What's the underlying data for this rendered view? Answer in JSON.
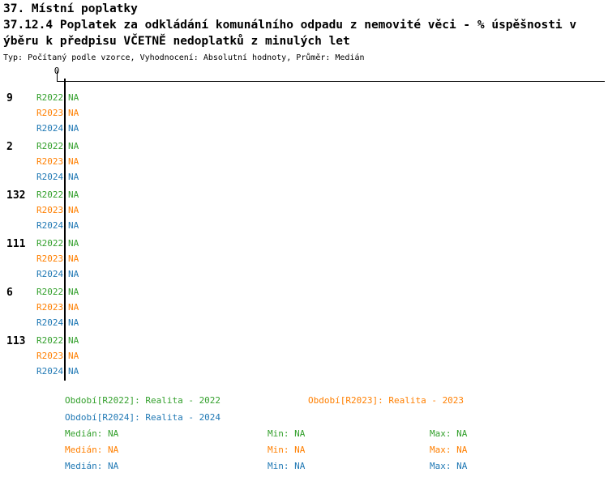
{
  "header": {
    "line1": "37. Místní poplatky",
    "line2": "37.12.4 Poplatek za odkládání komunálního odpadu z nemovité věci - % úspěšnosti v",
    "line3": "ýběru k předpisu VČETNĚ nedoplatků z minulých let",
    "meta": "Typ: Počítaný podle vzorce, Vyhodnocení: Absolutní hodnoty, Průměr: Medián"
  },
  "chart_data": {
    "type": "bar",
    "orientation": "horizontal",
    "title": "37.12.4 Poplatek za odkládání komunálního odpadu z nemovité věci - % úspěšnosti výběru k předpisu VČETNĚ nedoplatků z minulých let",
    "subtitle": "Typ: Počítaný podle vzorce, Vyhodnocení: Absolutní hodnoty, Průměr: Medián",
    "x_axis": {
      "position": "top",
      "ticks": [
        "0"
      ]
    },
    "categories": [
      "9",
      "2",
      "132",
      "111",
      "6",
      "113"
    ],
    "series": [
      {
        "name": "R2022",
        "period_label": "Realita - 2022",
        "color": "#33a02c",
        "values": [
          "NA",
          "NA",
          "NA",
          "NA",
          "NA",
          "NA"
        ]
      },
      {
        "name": "R2023",
        "period_label": "Realita - 2023",
        "color": "#ff7f00",
        "values": [
          "NA",
          "NA",
          "NA",
          "NA",
          "NA",
          "NA"
        ]
      },
      {
        "name": "R2024",
        "period_label": "Realita - 2024",
        "color": "#1f78b4",
        "values": [
          "NA",
          "NA",
          "NA",
          "NA",
          "NA",
          "NA"
        ]
      }
    ],
    "stats": [
      {
        "series": "R2022",
        "median": "NA",
        "min": "NA",
        "max": "NA"
      },
      {
        "series": "R2023",
        "median": "NA",
        "min": "NA",
        "max": "NA"
      },
      {
        "series": "R2024",
        "median": "NA",
        "min": "NA",
        "max": "NA"
      }
    ],
    "legend_position": "bottom",
    "grid": false
  },
  "legend": {
    "entries": [
      {
        "series": "R2022",
        "text": "Období[R2022]: Realita - 2022"
      },
      {
        "series": "R2023",
        "text": "Období[R2023]: Realita - 2023"
      },
      {
        "series": "R2024",
        "text": "Období[R2024]: Realita - 2024"
      }
    ],
    "stat_labels": {
      "median": "Medián:",
      "min": "Min:",
      "max": "Max:"
    }
  }
}
